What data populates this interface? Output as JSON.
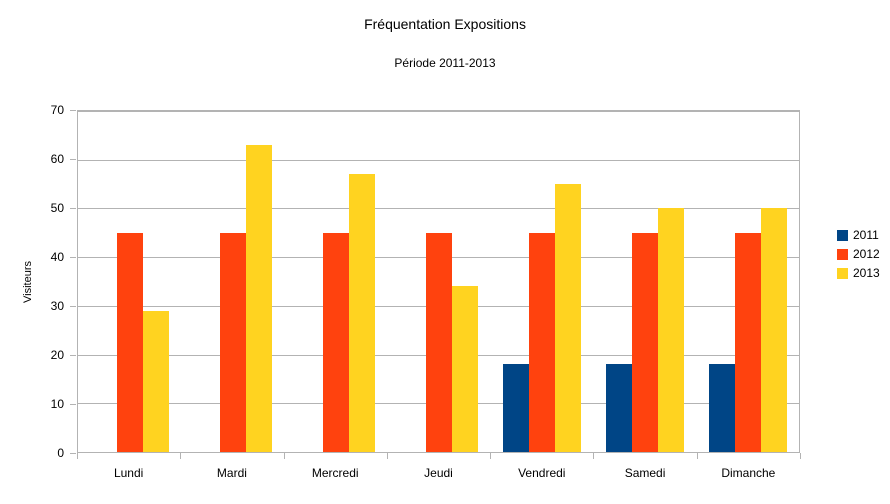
{
  "chart_data": {
    "type": "bar",
    "title": "Fréquentation Expositions",
    "subtitle": "Période 2011-2013",
    "ylabel": "Visiteurs",
    "xlabel": "",
    "categories": [
      "Lundi",
      "Mardi",
      "Mercredi",
      "Jeudi",
      "Vendredi",
      "Samedi",
      "Dimanche"
    ],
    "series": [
      {
        "name": "2011",
        "color": "#004586",
        "values": [
          0,
          0,
          0,
          0,
          18,
          18,
          18
        ]
      },
      {
        "name": "2012",
        "color": "#FF420E",
        "values": [
          45,
          45,
          45,
          45,
          45,
          45,
          45
        ]
      },
      {
        "name": "2013",
        "color": "#FFD320",
        "values": [
          29,
          63,
          57,
          34,
          55,
          50,
          50
        ]
      }
    ],
    "ylim": [
      0,
      70
    ],
    "yticks": [
      0,
      10,
      20,
      30,
      40,
      50,
      60,
      70
    ],
    "grid": true,
    "legend_position": "right",
    "colors": {
      "grid": "#B3B3B3",
      "axis": "#B3B3B3",
      "text": "#000000",
      "background": "#FFFFFF"
    }
  }
}
